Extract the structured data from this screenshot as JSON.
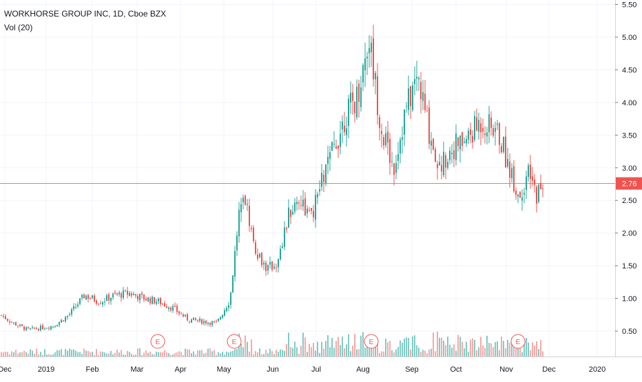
{
  "header": {
    "symbol_title": "WORKHORSE GROUP INC, 1D, Cboe BZX",
    "volume_label": "Vol (20)"
  },
  "colors": {
    "up": "#26a69a",
    "down": "#ef5350",
    "up_volume": "#80cbc4",
    "down_volume": "#f7a9a7",
    "grid": "#f0f3fa",
    "axis_text": "#131722",
    "price_line": "#ef5350",
    "earnings_marker": "#ef5350"
  },
  "chart_data": {
    "type": "candlestick",
    "title": "WORKHORSE GROUP INC, 1D, Cboe BZX",
    "indicator": "Vol (20)",
    "y_axis": {
      "position": "right",
      "ticks": [
        "0.50",
        "1.00",
        "1.50",
        "2.00",
        "2.50",
        "3.00",
        "3.50",
        "4.00",
        "4.50",
        "5.00",
        "5.50"
      ],
      "range": [
        0.3,
        5.6
      ]
    },
    "x_axis": {
      "ticks": [
        "Dec",
        "2019",
        "Feb",
        "Mar",
        "Apr",
        "May",
        "Jun",
        "Jul",
        "Aug",
        "Sep",
        "Oct",
        "Nov",
        "Dec",
        "2020"
      ]
    },
    "last_price": "2.76",
    "grid": true,
    "earnings_markers": [
      {
        "label": "E",
        "month": "Mar"
      },
      {
        "label": "E",
        "month": "May"
      },
      {
        "label": "E",
        "month": "Aug"
      },
      {
        "label": "E",
        "month": "Nov"
      }
    ],
    "price_series": [
      {
        "month": "Dec",
        "close": 0.74
      },
      {
        "month": "Dec",
        "close": 0.62
      },
      {
        "month": "Dec",
        "close": 0.52
      },
      {
        "month": "2019",
        "close": 0.58
      },
      {
        "month": "2019",
        "close": 0.75
      },
      {
        "month": "2019",
        "close": 1.05
      },
      {
        "month": "Feb",
        "close": 0.95
      },
      {
        "month": "Feb",
        "close": 1.05
      },
      {
        "month": "Feb",
        "close": 1.08
      },
      {
        "month": "Mar",
        "close": 1.0
      },
      {
        "month": "Mar",
        "close": 0.95
      },
      {
        "month": "Mar",
        "close": 0.85
      },
      {
        "month": "Apr",
        "close": 0.68
      },
      {
        "month": "Apr",
        "close": 0.65
      },
      {
        "month": "Apr",
        "close": 0.62
      },
      {
        "month": "May",
        "close": 0.98
      },
      {
        "month": "May",
        "close": 2.76
      },
      {
        "month": "May",
        "close": 1.8
      },
      {
        "month": "May",
        "close": 1.45
      },
      {
        "month": "Jun",
        "close": 1.55
      },
      {
        "month": "Jun",
        "close": 2.3
      },
      {
        "month": "Jun",
        "close": 2.55
      },
      {
        "month": "Jun",
        "close": 2.2
      },
      {
        "month": "Jul",
        "close": 2.8
      },
      {
        "month": "Jul",
        "close": 3.3
      },
      {
        "month": "Jul",
        "close": 3.8
      },
      {
        "month": "Jul",
        "close": 4.1
      },
      {
        "month": "Aug",
        "close": 5.0
      },
      {
        "month": "Aug",
        "close": 3.6
      },
      {
        "month": "Aug",
        "close": 3.0
      },
      {
        "month": "Aug",
        "close": 3.9
      },
      {
        "month": "Sep",
        "close": 4.4
      },
      {
        "month": "Sep",
        "close": 3.6
      },
      {
        "month": "Sep",
        "close": 3.0
      },
      {
        "month": "Sep",
        "close": 3.3
      },
      {
        "month": "Oct",
        "close": 3.4
      },
      {
        "month": "Oct",
        "close": 3.7
      },
      {
        "month": "Oct",
        "close": 3.55
      },
      {
        "month": "Nov",
        "close": 2.95
      },
      {
        "month": "Nov",
        "close": 2.55
      },
      {
        "month": "Nov",
        "close": 2.9
      },
      {
        "month": "Nov",
        "close": 2.6
      },
      {
        "month": "Nov",
        "close": 2.76
      }
    ]
  }
}
